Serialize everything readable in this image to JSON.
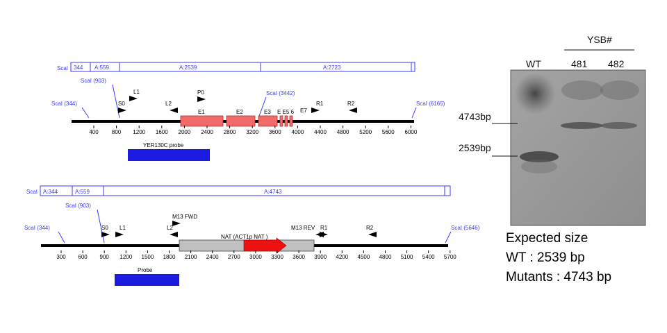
{
  "colors": {
    "site": "#3a3aff",
    "exon": "#f26b6b",
    "probe": "#1a1ae0",
    "nat": "#c0c0c0",
    "act1p_arrow": "#ee1111",
    "gel_bg": "#9a9a9a"
  },
  "map1": {
    "frag_box": {
      "scal_label": "ScaI",
      "cells": [
        "344",
        "A:559",
        "A:2539",
        "A:2723"
      ]
    },
    "sites": [
      {
        "label": "ScaI (344)",
        "pos": 344
      },
      {
        "label": "ScaI (903)",
        "pos": 903
      },
      {
        "label": "ScaI (3442)",
        "pos": 3442
      },
      {
        "label": "ScaI (6165)",
        "pos": 6165
      }
    ],
    "primers": [
      "S0",
      "L1",
      "L2",
      "P0",
      "E7",
      "R1",
      "R2"
    ],
    "exons": [
      "E1",
      "E2",
      "E3",
      "E4",
      "E5",
      "E6"
    ],
    "exon_inline_label": "E E5 6",
    "ticks": [
      "400",
      "800",
      "1200",
      "1600",
      "2000",
      "2400",
      "2800",
      "3200",
      "3600",
      "4000",
      "4400",
      "4800",
      "5200",
      "5600",
      "6000"
    ],
    "probe_label": "YER130C probe"
  },
  "map2": {
    "frag_box": {
      "scal_label": "ScaI",
      "cells": [
        "A:344",
        "A:559",
        "A:4743"
      ]
    },
    "sites": [
      {
        "label": "ScaI (344)",
        "pos": 344
      },
      {
        "label": "ScaI (903)",
        "pos": 903
      },
      {
        "label": "ScaI (5646)",
        "pos": 5646
      }
    ],
    "primers": [
      "S0",
      "L1",
      "L2",
      "M13 FWD",
      "M13 REV",
      "R1",
      "R2"
    ],
    "m13_rev_label": "M13 REV",
    "r1_label": "R1",
    "nat_label": "NAT (ACT1p NAT )",
    "ticks": [
      "300",
      "600",
      "900",
      "1200",
      "1500",
      "1800",
      "2100",
      "2400",
      "2700",
      "3000",
      "3300",
      "3600",
      "3900",
      "4200",
      "4500",
      "4800",
      "5100",
      "5400",
      "5700"
    ],
    "probe_label": "Probe"
  },
  "gel": {
    "group_label": "YSB#",
    "lanes": [
      "WT",
      "481",
      "482"
    ],
    "markers": [
      "4743bp",
      "2539bp"
    ]
  },
  "result": {
    "title": "Expected size",
    "wt": "WT : 2539 bp",
    "mutants": "Mutants : 4743 bp"
  }
}
